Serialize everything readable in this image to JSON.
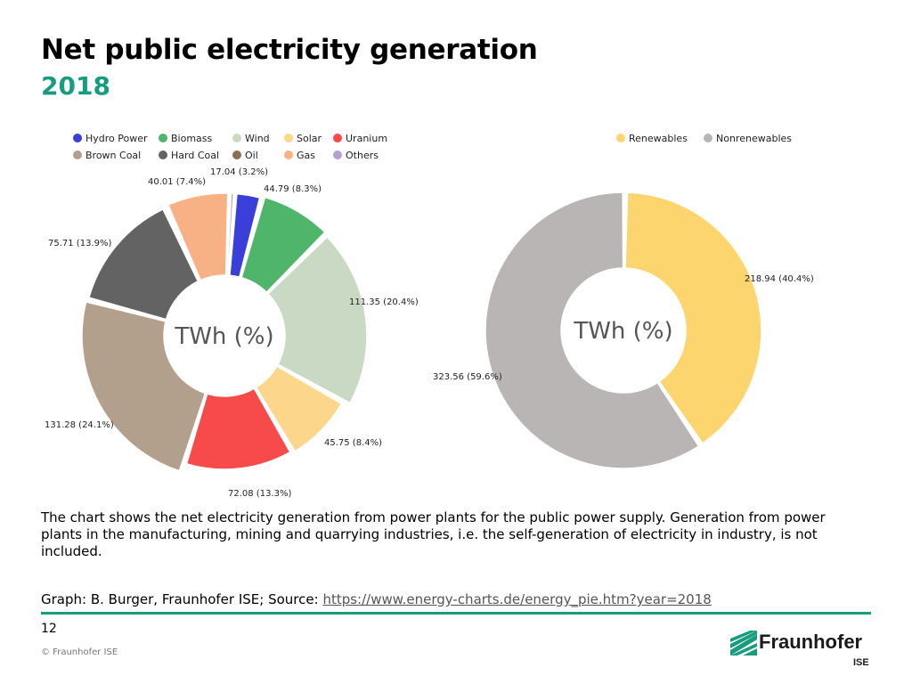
{
  "page": {
    "title": "Net public electricity generation",
    "subtitle": "2018",
    "description": "The chart shows the net electricity generation from power plants for the public power supply. Generation from power plants in the manufacturing, mining and quarrying industries, i.e. the self-generation of electricity in industry, is not included.",
    "source_prefix": "Graph: B. Burger, Fraunhofer ISE; Source: ",
    "source_link": "https://www.energy-charts.de/energy_pie.htm?year=2018",
    "page_number": "12",
    "copyright": "© Fraunhofer ISE",
    "logo_name": "Fraunhofer",
    "logo_sub": "ISE"
  },
  "chart_data": [
    {
      "type": "pie",
      "center_label": "TWh (%)",
      "legend_position": "top",
      "slices": [
        {
          "name": "Hydro Power",
          "value": 17.04,
          "percent": 3.2,
          "label": "17.04 (3.2%)",
          "color": "#3a3fd9"
        },
        {
          "name": "Biomass",
          "value": 44.79,
          "percent": 8.3,
          "label": "44.79 (8.3%)",
          "color": "#4fb56a"
        },
        {
          "name": "Wind",
          "value": 111.35,
          "percent": 20.4,
          "label": "111.35 (20.4%)",
          "color": "#c9d9c3"
        },
        {
          "name": "Solar",
          "value": 45.75,
          "percent": 8.4,
          "label": "45.75 (8.4%)",
          "color": "#fcd68b"
        },
        {
          "name": "Uranium",
          "value": 72.08,
          "percent": 13.3,
          "label": "72.08 (13.3%)",
          "color": "#f74b4b"
        },
        {
          "name": "Brown Coal",
          "value": 131.28,
          "percent": 24.1,
          "label": "131.28 (24.1%)",
          "color": "#b3a08c"
        },
        {
          "name": "Hard Coal",
          "value": 75.71,
          "percent": 13.9,
          "label": "75.71 (13.9%)",
          "color": "#636363"
        },
        {
          "name": "Oil",
          "value": 1.0,
          "percent": 0.2,
          "label": "",
          "color": "#8b6d52"
        },
        {
          "name": "Gas",
          "value": 40.01,
          "percent": 7.4,
          "label": "40.01 (7.4%)",
          "color": "#f7b184"
        },
        {
          "name": "Others",
          "value": 2.5,
          "percent": 0.5,
          "label": "",
          "color": "#b3a2cc"
        }
      ]
    },
    {
      "type": "pie",
      "center_label": "TWh (%)",
      "legend_position": "top",
      "slices": [
        {
          "name": "Renewables",
          "value": 218.94,
          "percent": 40.4,
          "label": "218.94 (40.4%)",
          "color": "#fcd56f"
        },
        {
          "name": "Nonrenewables",
          "value": 323.56,
          "percent": 59.6,
          "label": "323.56 (59.6%)",
          "color": "#b9b5b4"
        }
      ]
    }
  ]
}
